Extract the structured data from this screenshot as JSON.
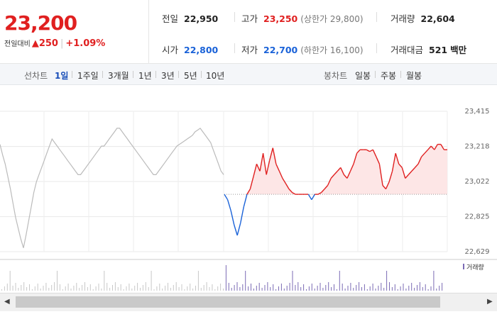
{
  "summary": {
    "price": "23,200",
    "change_label": "전일대비",
    "change_icon": "triangle-up-icon",
    "change_value": "250",
    "change_pct": "+1.09%"
  },
  "quotes": {
    "prev_close": {
      "label": "전일",
      "value": "22,950"
    },
    "high": {
      "label": "고가",
      "value": "23,250",
      "note": "(상한가 29,800)"
    },
    "volume": {
      "label": "거래량",
      "value": "22,604"
    },
    "open": {
      "label": "시가",
      "value": "22,800"
    },
    "low": {
      "label": "저가",
      "value": "22,700",
      "note": "(하한가 16,100)"
    },
    "amount": {
      "label": "거래대금",
      "value": "521",
      "unit": "백만"
    }
  },
  "line_chart_tabs": {
    "label": "선차트",
    "items": [
      "1일",
      "1주일",
      "3개월",
      "1년",
      "3년",
      "5년",
      "10년"
    ],
    "selected": "1일"
  },
  "candle_chart_tabs": {
    "label": "봉차트",
    "items": [
      "일봉",
      "주봉",
      "월봉"
    ]
  },
  "chart_data": {
    "type": "line",
    "y_ticks": [
      "23,415",
      "23,218",
      "23,022",
      "22,825",
      "22,629"
    ],
    "ylim": [
      22629,
      23415
    ],
    "baseline": 22950,
    "colors": {
      "up": "#e02020",
      "down": "#1a62d8",
      "prev": "#bbbbbb",
      "fill": "#fde6e6"
    },
    "prev_series": [
      23230,
      23170,
      23120,
      23050,
      22980,
      22900,
      22820,
      22760,
      22700,
      22650,
      22720,
      22800,
      22880,
      22960,
      23020,
      23060,
      23100,
      23140,
      23180,
      23220,
      23260,
      23240,
      23220,
      23200,
      23180,
      23160,
      23140,
      23120,
      23100,
      23080,
      23060,
      23060,
      23080,
      23100,
      23120,
      23140,
      23160,
      23180,
      23200,
      23220,
      23220,
      23240,
      23260,
      23280,
      23300,
      23320,
      23320,
      23300,
      23280,
      23260,
      23240,
      23220,
      23200,
      23180,
      23160,
      23140,
      23120,
      23100,
      23080,
      23060,
      23060,
      23080,
      23100,
      23120,
      23140,
      23160,
      23180,
      23200,
      23220,
      23230,
      23240,
      23250,
      23260,
      23270,
      23280,
      23300,
      23310,
      23320,
      23300,
      23280,
      23260,
      23240,
      23200,
      23160,
      23120,
      23080,
      23060
    ],
    "today_series": [
      22950,
      22920,
      22860,
      22780,
      22720,
      22790,
      22880,
      22950,
      22980,
      23050,
      23120,
      23080,
      23180,
      23060,
      23140,
      23210,
      23120,
      23080,
      23040,
      23010,
      22980,
      22960,
      22950,
      22950,
      22950,
      22950,
      22950,
      22920,
      22950,
      22950,
      22960,
      22980,
      23000,
      23040,
      23060,
      23080,
      23100,
      23060,
      23040,
      23080,
      23120,
      23180,
      23200,
      23200,
      23200,
      23190,
      23200,
      23160,
      23120,
      23000,
      22980,
      23020,
      23080,
      23180,
      23120,
      23100,
      23040,
      23060,
      23080,
      23100,
      23120,
      23160,
      23180,
      23200,
      23220,
      23200,
      23230,
      23230,
      23200,
      23200
    ],
    "volume_label": "거래량"
  }
}
